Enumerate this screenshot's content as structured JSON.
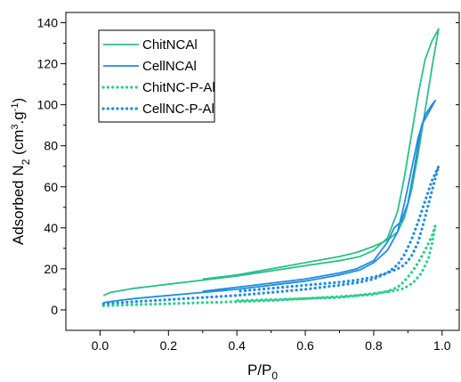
{
  "chart_data": {
    "type": "line",
    "title": "",
    "xlabel": "P/P",
    "xlabel_sub": "0",
    "ylabel_parts": [
      {
        "t": "Adsorbed N",
        "s": "normal"
      },
      {
        "t": "2",
        "s": "sub"
      },
      {
        "t": " (cm",
        "s": "normal"
      },
      {
        "t": "3",
        "s": "sup"
      },
      {
        "t": ".g",
        "s": "normal"
      },
      {
        "t": "-1",
        "s": "sup"
      },
      {
        "t": ")",
        "s": "normal"
      }
    ],
    "xlim": [
      -0.1,
      1.05
    ],
    "ylim": [
      -10,
      145
    ],
    "xticks": [
      0.0,
      0.2,
      0.4,
      0.6,
      0.8,
      1.0
    ],
    "xtick_labels": [
      "0.0",
      "0.2",
      "0.4",
      "0.6",
      "0.8",
      "1.0"
    ],
    "yticks": [
      0,
      20,
      40,
      60,
      80,
      100,
      120,
      140
    ],
    "ytick_labels": [
      "0",
      "20",
      "40",
      "60",
      "80",
      "100",
      "120",
      "140"
    ],
    "grid": false,
    "legend_position": "top-left",
    "series": [
      {
        "name": "ChitNCAl",
        "color": "#2bbf8a",
        "style": "solid",
        "adsorption": [
          [
            0.01,
            7
          ],
          [
            0.03,
            8.5
          ],
          [
            0.1,
            10.5
          ],
          [
            0.2,
            12.5
          ],
          [
            0.3,
            14.5
          ],
          [
            0.4,
            16.5
          ],
          [
            0.5,
            19
          ],
          [
            0.6,
            21.5
          ],
          [
            0.7,
            24
          ],
          [
            0.76,
            26
          ],
          [
            0.8,
            29
          ],
          [
            0.84,
            35
          ],
          [
            0.87,
            48
          ],
          [
            0.89,
            65
          ],
          [
            0.91,
            85
          ],
          [
            0.93,
            105
          ],
          [
            0.95,
            122
          ],
          [
            0.97,
            131
          ],
          [
            0.99,
            137
          ]
        ],
        "desorption": [
          [
            0.99,
            137
          ],
          [
            0.97,
            118
          ],
          [
            0.95,
            97
          ],
          [
            0.93,
            76
          ],
          [
            0.91,
            58
          ],
          [
            0.89,
            45
          ],
          [
            0.87,
            38
          ],
          [
            0.84,
            34
          ],
          [
            0.8,
            31
          ],
          [
            0.75,
            28
          ],
          [
            0.7,
            26
          ],
          [
            0.6,
            23
          ],
          [
            0.5,
            20
          ],
          [
            0.4,
            17
          ],
          [
            0.3,
            15
          ]
        ]
      },
      {
        "name": "CellNCAl",
        "color": "#1f8de0",
        "style": "solid",
        "adsorption": [
          [
            0.01,
            3.5
          ],
          [
            0.05,
            4.5
          ],
          [
            0.1,
            5.5
          ],
          [
            0.2,
            7
          ],
          [
            0.3,
            8.5
          ],
          [
            0.4,
            10
          ],
          [
            0.5,
            12
          ],
          [
            0.6,
            14
          ],
          [
            0.7,
            17
          ],
          [
            0.76,
            19.5
          ],
          [
            0.8,
            23
          ],
          [
            0.84,
            29
          ],
          [
            0.87,
            38
          ],
          [
            0.89,
            52
          ],
          [
            0.91,
            68
          ],
          [
            0.93,
            84
          ],
          [
            0.95,
            95
          ],
          [
            0.97,
            100
          ],
          [
            0.98,
            102
          ]
        ],
        "desorption": [
          [
            0.98,
            102
          ],
          [
            0.96,
            96
          ],
          [
            0.94,
            90
          ],
          [
            0.92,
            70
          ],
          [
            0.9,
            52
          ],
          [
            0.88,
            43
          ],
          [
            0.86,
            40
          ],
          [
            0.84,
            33
          ],
          [
            0.8,
            24
          ],
          [
            0.75,
            20
          ],
          [
            0.7,
            18
          ],
          [
            0.6,
            15
          ],
          [
            0.5,
            13
          ],
          [
            0.4,
            11
          ],
          [
            0.3,
            9
          ]
        ]
      },
      {
        "name": "ChitNC-P-Al",
        "color": "#2ccf8e",
        "style": "dotted",
        "adsorption": [
          [
            0.01,
            2
          ],
          [
            0.1,
            2.5
          ],
          [
            0.2,
            3
          ],
          [
            0.3,
            3.5
          ],
          [
            0.4,
            4
          ],
          [
            0.5,
            4.5
          ],
          [
            0.6,
            5.5
          ],
          [
            0.7,
            6
          ],
          [
            0.76,
            7
          ],
          [
            0.8,
            7.5
          ],
          [
            0.84,
            9
          ],
          [
            0.87,
            11
          ],
          [
            0.89,
            14
          ],
          [
            0.91,
            18
          ],
          [
            0.93,
            23
          ],
          [
            0.95,
            29
          ],
          [
            0.97,
            36
          ],
          [
            0.98,
            41
          ]
        ],
        "desorption": [
          [
            0.98,
            41
          ],
          [
            0.97,
            32
          ],
          [
            0.96,
            25
          ],
          [
            0.94,
            18
          ],
          [
            0.92,
            14
          ],
          [
            0.9,
            11.5
          ],
          [
            0.88,
            10
          ],
          [
            0.85,
            9
          ],
          [
            0.8,
            8
          ],
          [
            0.75,
            7
          ],
          [
            0.7,
            6.5
          ],
          [
            0.6,
            5.5
          ],
          [
            0.5,
            5
          ],
          [
            0.4,
            4.5
          ]
        ]
      },
      {
        "name": "CellNC-P-Al",
        "color": "#1f8de0",
        "style": "dotted",
        "adsorption": [
          [
            0.01,
            3
          ],
          [
            0.1,
            4
          ],
          [
            0.2,
            5
          ],
          [
            0.3,
            6
          ],
          [
            0.4,
            7
          ],
          [
            0.5,
            8.5
          ],
          [
            0.6,
            10
          ],
          [
            0.7,
            12
          ],
          [
            0.76,
            13.5
          ],
          [
            0.8,
            15
          ],
          [
            0.84,
            18
          ],
          [
            0.87,
            22
          ],
          [
            0.89,
            27
          ],
          [
            0.91,
            34
          ],
          [
            0.93,
            43
          ],
          [
            0.95,
            53
          ],
          [
            0.97,
            63
          ],
          [
            0.99,
            70
          ]
        ],
        "desorption": [
          [
            0.99,
            70
          ],
          [
            0.97,
            58
          ],
          [
            0.95,
            45
          ],
          [
            0.93,
            33
          ],
          [
            0.91,
            26
          ],
          [
            0.89,
            22
          ],
          [
            0.87,
            20
          ],
          [
            0.84,
            18
          ],
          [
            0.8,
            16
          ],
          [
            0.75,
            14.5
          ],
          [
            0.7,
            13.5
          ],
          [
            0.6,
            12
          ],
          [
            0.5,
            10.5
          ],
          [
            0.4,
            9
          ]
        ]
      }
    ]
  }
}
